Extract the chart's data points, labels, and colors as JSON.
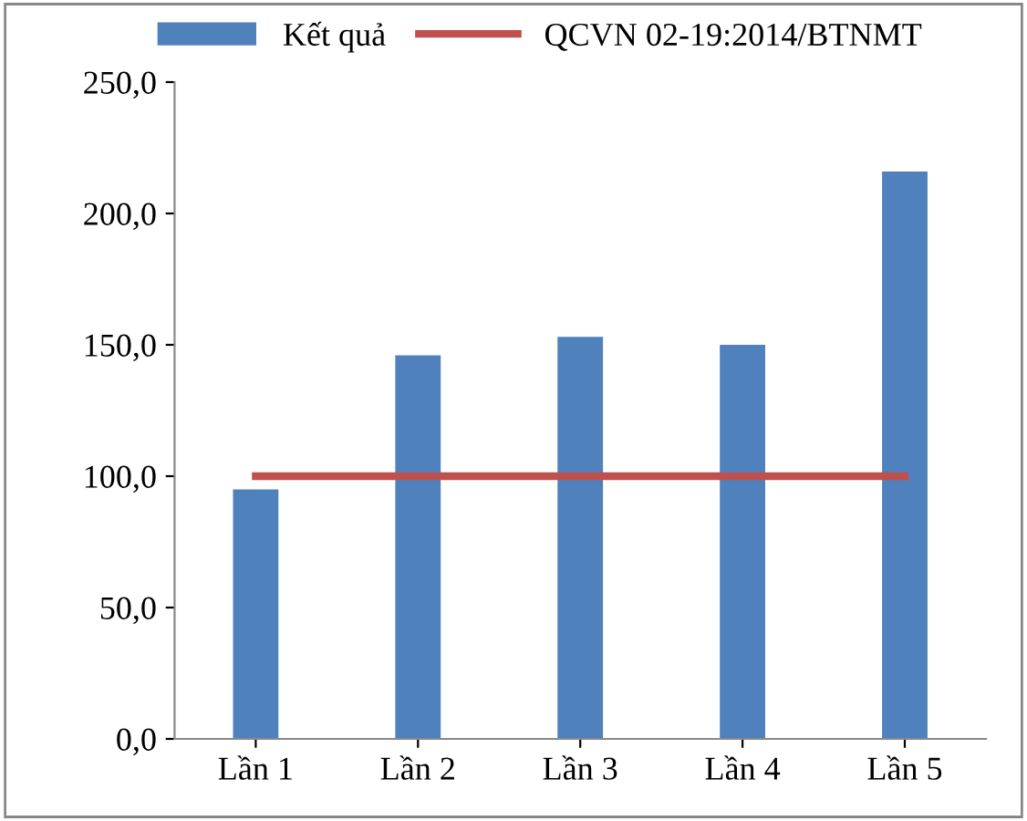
{
  "chart_data": {
    "type": "bar",
    "categories": [
      "Lần 1",
      "Lần 2",
      "Lần 3",
      "Lần 4",
      "Lần 5"
    ],
    "series": [
      {
        "name": "Kết quả",
        "color": "#4f81bd",
        "values": [
          95,
          146,
          153,
          150,
          216
        ]
      },
      {
        "name": "QCVN 02-19:2014/BTNMT",
        "type": "line",
        "color": "#c0504d",
        "values": [
          100,
          100,
          100,
          100,
          100
        ]
      }
    ],
    "ylim": [
      0,
      250
    ],
    "yticks": [
      {
        "value": 0,
        "label": "0,0"
      },
      {
        "value": 50,
        "label": "50,0"
      },
      {
        "value": 100,
        "label": "100,0"
      },
      {
        "value": 150,
        "label": "150,0"
      },
      {
        "value": 200,
        "label": "200,0"
      },
      {
        "value": 250,
        "label": "250,0"
      }
    ],
    "grid": false,
    "legend": "top",
    "marker": "none"
  }
}
